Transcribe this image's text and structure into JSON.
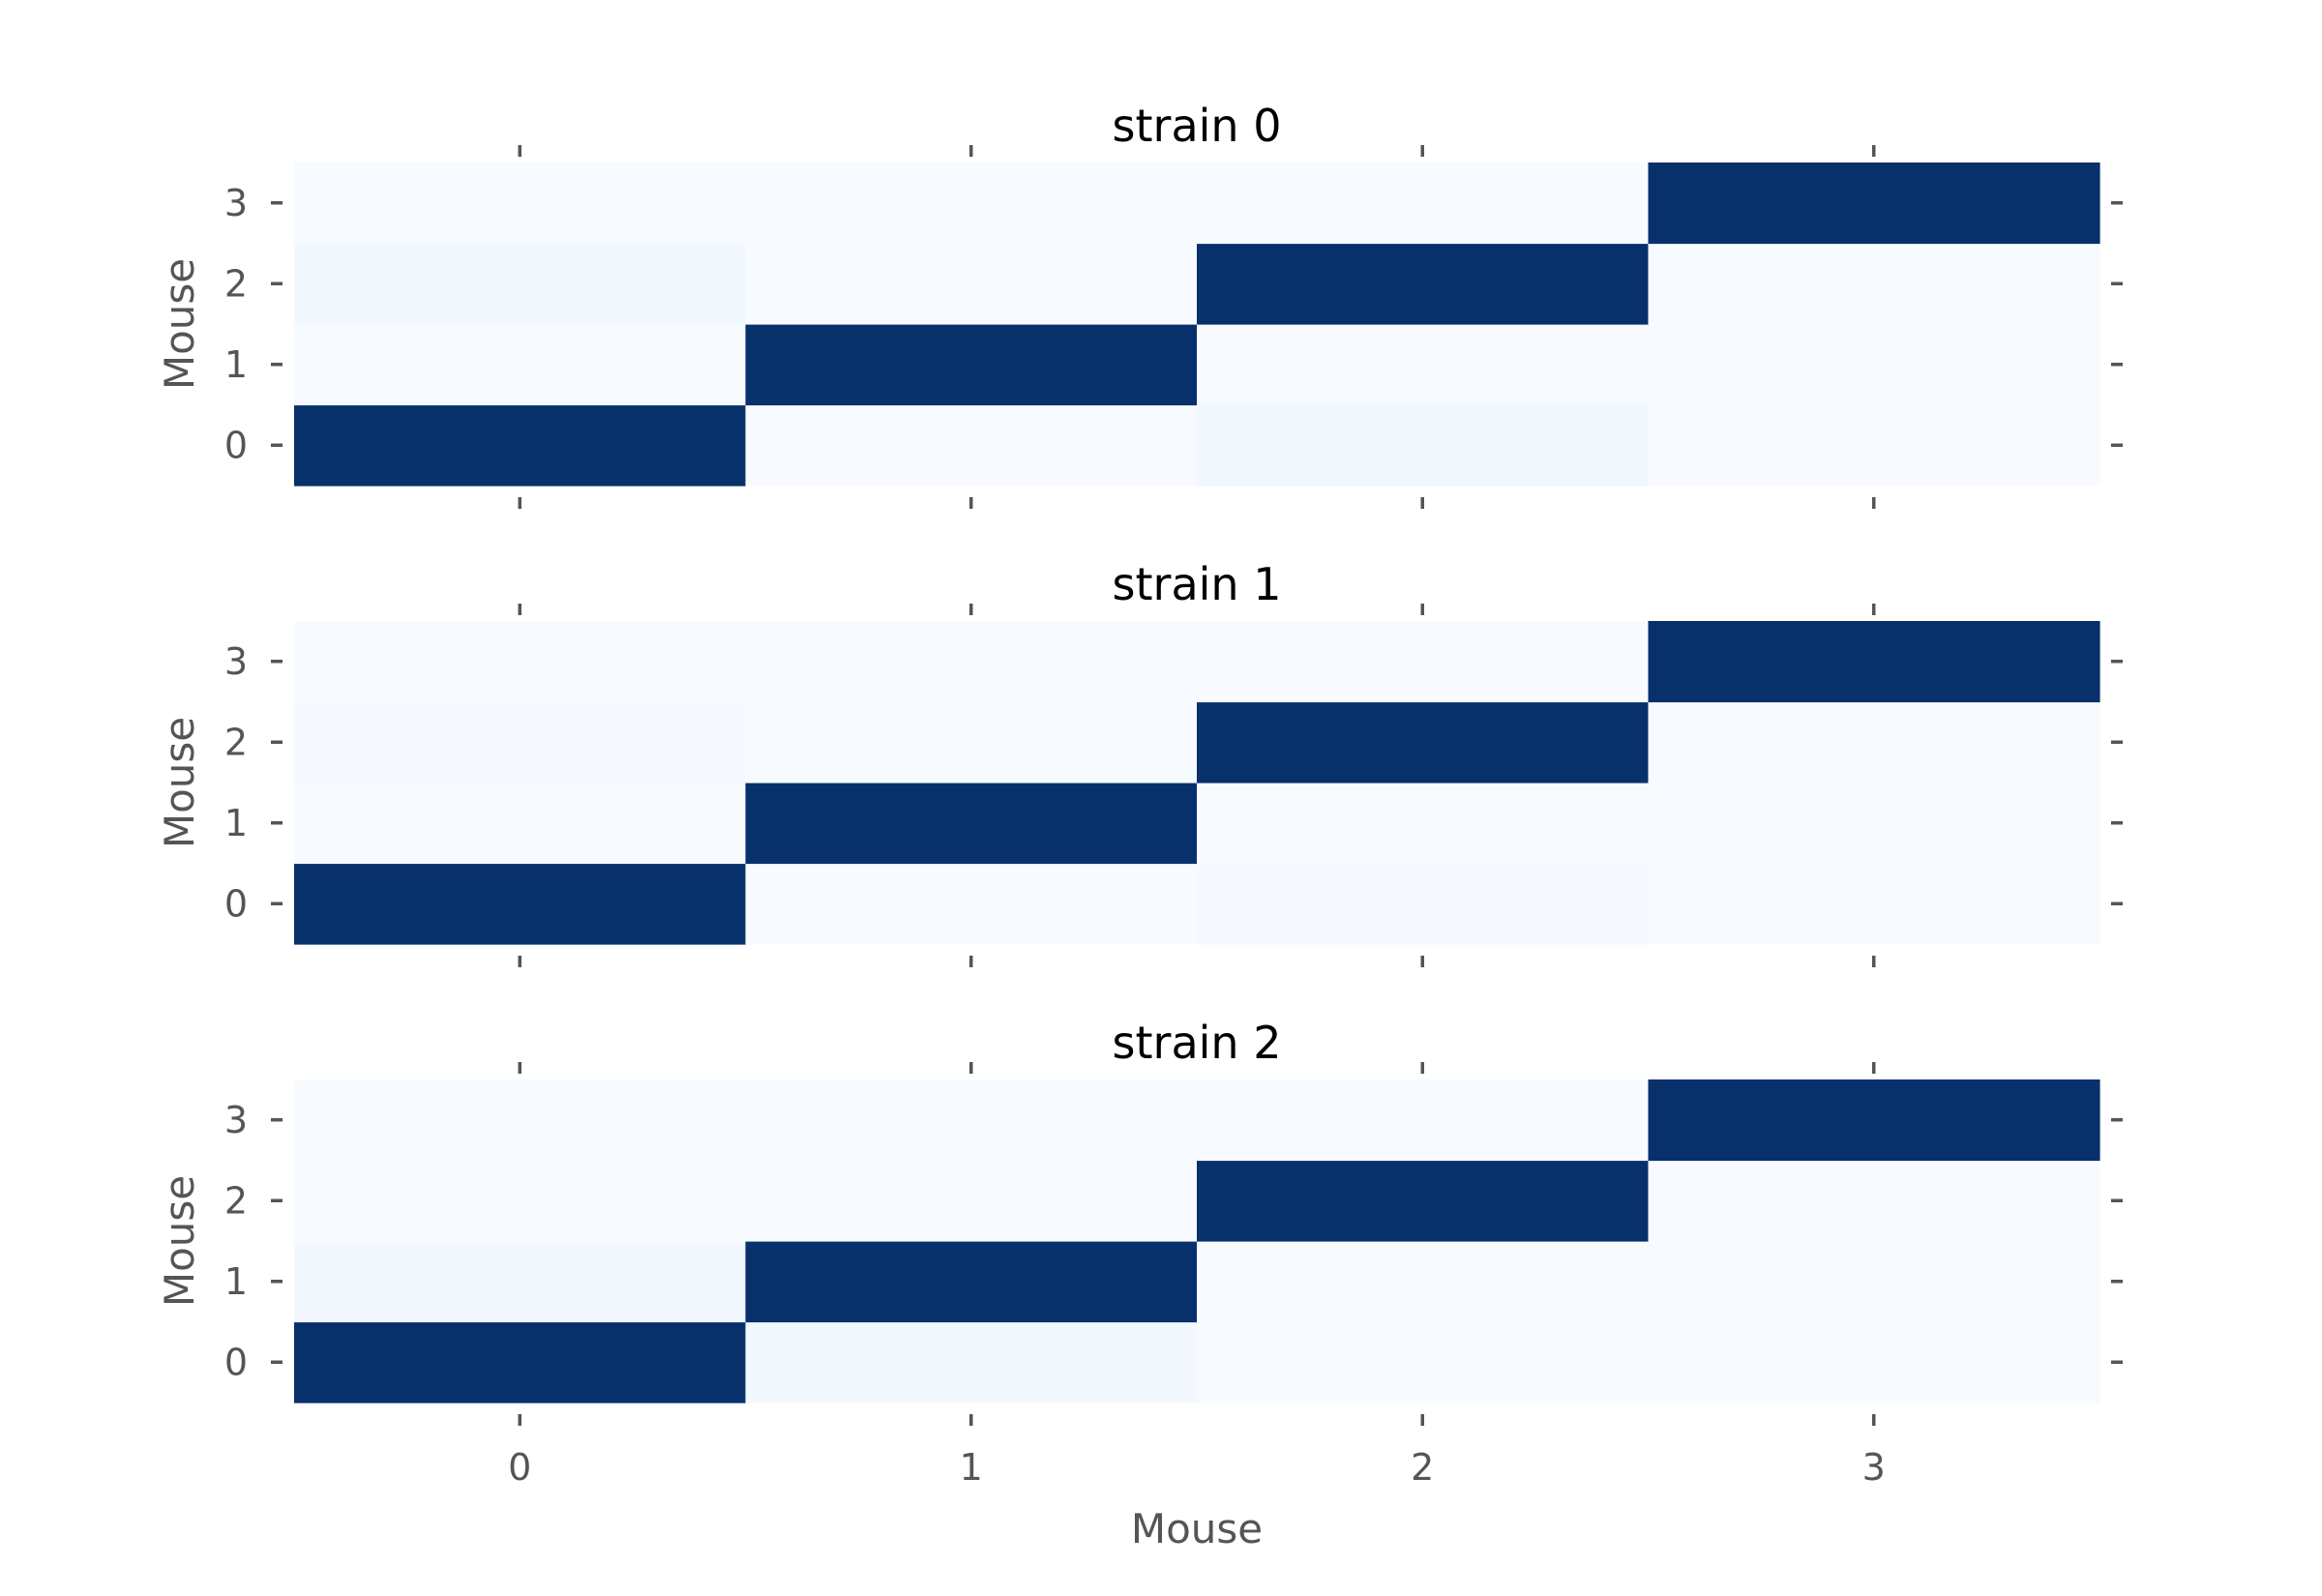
{
  "chart_data": {
    "type": "heatmap",
    "colormap": "Blues",
    "xlabel": "Mouse",
    "x_categories": [
      "0",
      "1",
      "2",
      "3"
    ],
    "y_categories": [
      "0",
      "1",
      "2",
      "3"
    ],
    "colors": {
      "low": "#f7fbff",
      "high": "#08306b"
    },
    "panels": [
      {
        "title": "strain 0",
        "ylabel": "Mouse",
        "values": [
          [
            1.0,
            0.0,
            0.04,
            0.0
          ],
          [
            0.0,
            1.0,
            0.0,
            0.0
          ],
          [
            0.04,
            0.0,
            1.0,
            0.0
          ],
          [
            0.0,
            0.0,
            0.0,
            1.0
          ]
        ]
      },
      {
        "title": "strain 1",
        "ylabel": "Mouse",
        "values": [
          [
            1.0,
            0.0,
            0.015,
            0.0
          ],
          [
            0.0,
            1.0,
            0.0,
            0.0
          ],
          [
            0.015,
            0.0,
            1.0,
            0.0
          ],
          [
            0.0,
            0.0,
            0.0,
            1.0
          ]
        ]
      },
      {
        "title": "strain 2",
        "ylabel": "Mouse",
        "values": [
          [
            1.0,
            0.025,
            0.0,
            0.0
          ],
          [
            0.025,
            1.0,
            0.0,
            0.0
          ],
          [
            0.0,
            0.0,
            1.0,
            0.0
          ],
          [
            0.0,
            0.0,
            0.0,
            1.0
          ]
        ]
      }
    ]
  }
}
